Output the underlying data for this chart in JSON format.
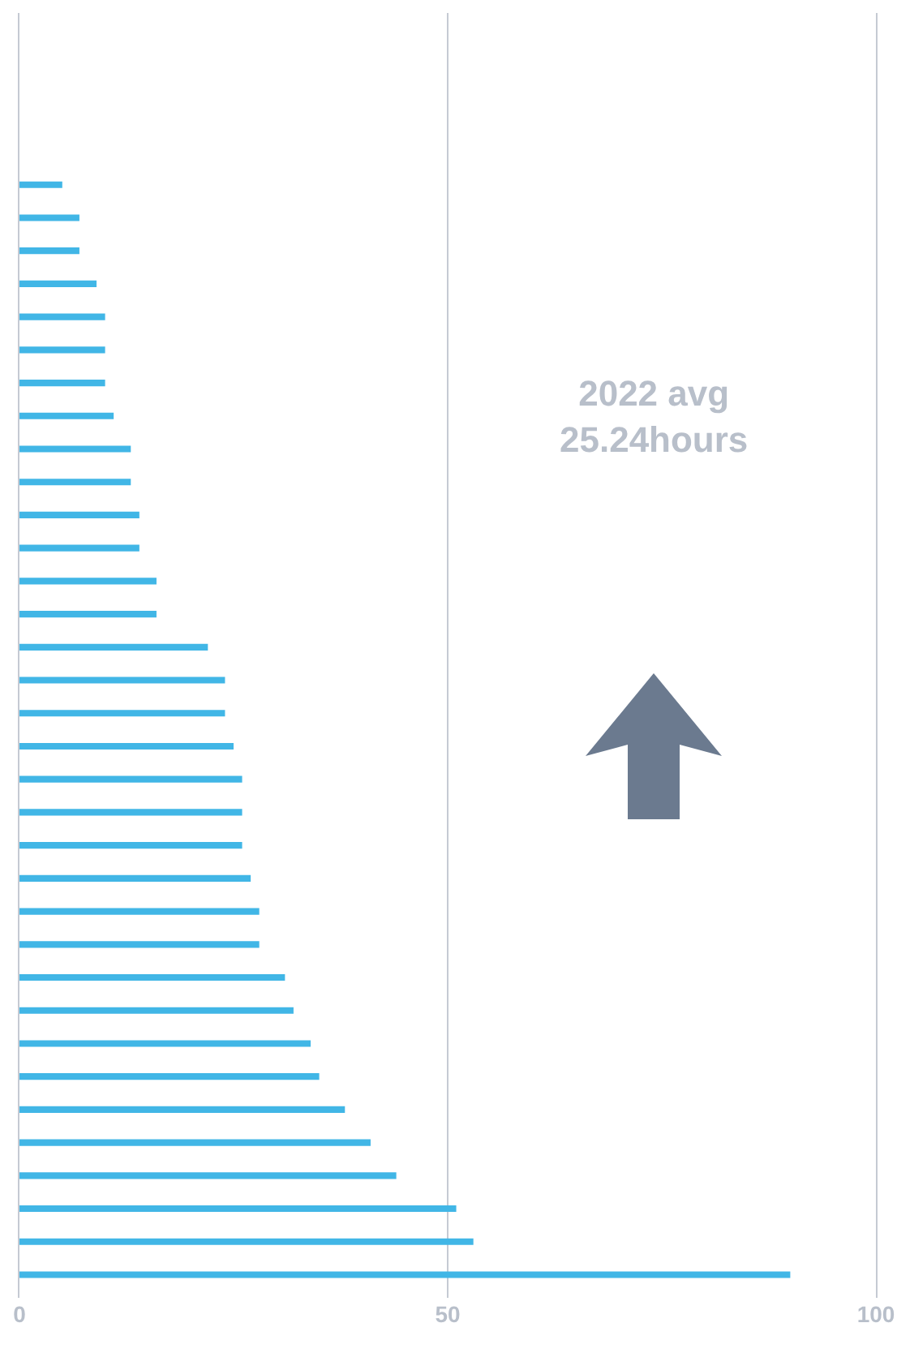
{
  "chart_data": {
    "type": "bar",
    "orientation": "horizontal",
    "categories": [
      null,
      null,
      null,
      null,
      null,
      null,
      null,
      null,
      null,
      null,
      null,
      null,
      null,
      null,
      null,
      null,
      null,
      null,
      null,
      null,
      null,
      null,
      null,
      null,
      null,
      null,
      null,
      null,
      null,
      null,
      null,
      null,
      null,
      null
    ],
    "values": [
      5,
      7,
      7,
      9,
      10,
      10,
      10,
      11,
      13,
      13,
      14,
      14,
      16,
      16,
      22,
      24,
      24,
      25,
      26,
      26,
      26,
      27,
      28,
      28,
      31,
      32,
      34,
      35,
      38,
      41,
      44,
      51,
      53,
      90
    ],
    "color": "#41b6e6",
    "xlim": [
      0,
      100
    ],
    "xticks": [
      0,
      50,
      100
    ],
    "grid": "x",
    "tick_labels": "x",
    "annotations": [
      "2022 avg\n25.24hours"
    ]
  }
}
